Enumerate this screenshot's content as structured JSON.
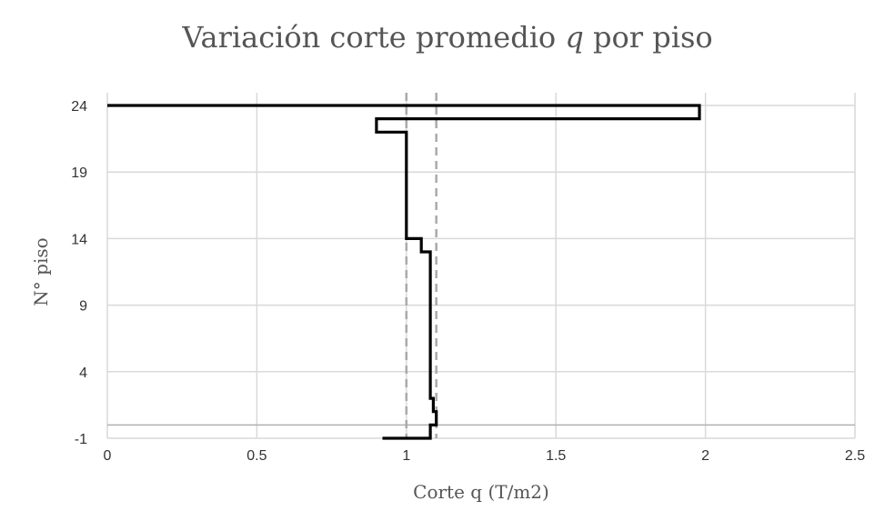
{
  "chart_data": {
    "type": "line",
    "title_prefix": "Variación corte promedio ",
    "title_var": "q",
    "title_suffix": " por piso",
    "xlabel": "Corte q (T/m2)",
    "ylabel": "N° piso",
    "xlim": [
      0,
      2.5
    ],
    "ylim": [
      -1,
      25
    ],
    "xticks": [
      "0",
      "0.5",
      "1",
      "1.5",
      "2",
      "2.5"
    ],
    "yticks": [
      "-1",
      "4",
      "9",
      "14",
      "19",
      "24"
    ],
    "grid": true,
    "reference_lines": [
      {
        "x": 1.0,
        "style": "dashed",
        "color": "#aaaaaa"
      },
      {
        "x": 1.1,
        "style": "dashed",
        "color": "#aaaaaa"
      }
    ],
    "baseline_y": 0,
    "series": [
      {
        "color": "#000000",
        "points": [
          [
            0.92,
            -1
          ],
          [
            1.08,
            -1
          ],
          [
            1.08,
            0
          ],
          [
            1.1,
            0
          ],
          [
            1.1,
            1
          ],
          [
            1.09,
            1
          ],
          [
            1.09,
            2
          ],
          [
            1.08,
            2
          ],
          [
            1.08,
            13
          ],
          [
            1.05,
            13
          ],
          [
            1.05,
            14
          ],
          [
            1.0,
            14
          ],
          [
            1.0,
            22
          ],
          [
            0.9,
            22
          ],
          [
            0.9,
            23
          ],
          [
            1.98,
            23
          ],
          [
            1.98,
            24
          ],
          [
            0,
            24
          ]
        ]
      }
    ]
  }
}
